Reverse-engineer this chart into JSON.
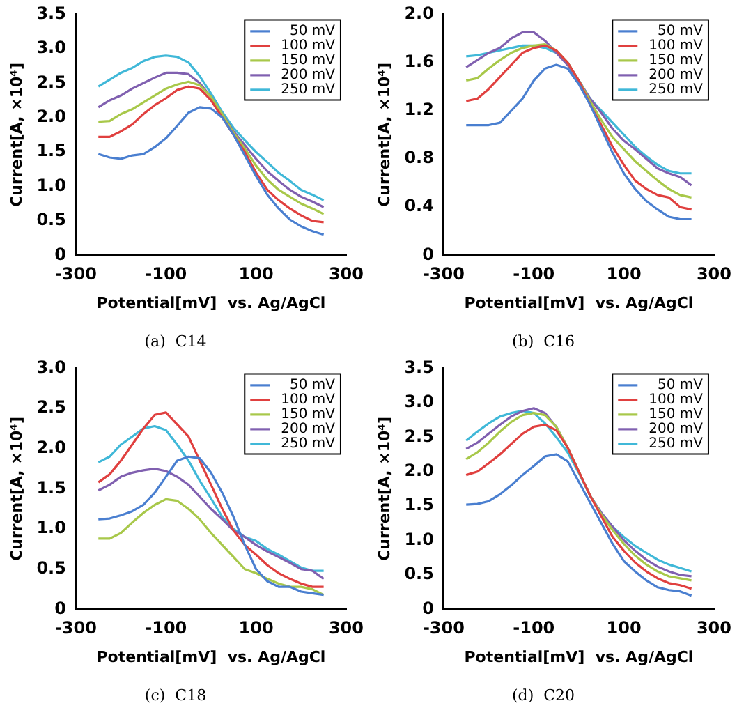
{
  "chart_data": [
    {
      "type": "line",
      "title": "(a)  C14",
      "xlabel": "Potential[mV]  vs. Ag/AgCl",
      "ylabel": "Current[A, ×10⁴]",
      "legend": "top right",
      "x": [
        -250,
        -225,
        -200,
        -175,
        -150,
        -125,
        -100,
        -75,
        -50,
        -25,
        0,
        25,
        50,
        75,
        100,
        125,
        150,
        175,
        200,
        225,
        250
      ],
      "xlim": [
        -300,
        300
      ],
      "xticks": [
        -300,
        -100,
        100,
        300
      ],
      "ylim": [
        0,
        3.5
      ],
      "yticks": [
        0,
        0.5,
        {
          "value": 1,
          "label": "1.0"
        },
        1.5,
        {
          "value": 2,
          "label": "2.0"
        },
        2.5,
        {
          "value": 3,
          "label": "3.0"
        },
        3.5
      ],
      "series": [
        {
          "name": "50 mV",
          "color": "#4a7fd0",
          "values": [
            1.47,
            1.42,
            1.4,
            1.45,
            1.47,
            1.57,
            1.7,
            1.88,
            2.07,
            2.15,
            2.13,
            2.0,
            1.75,
            1.45,
            1.15,
            0.88,
            0.68,
            0.52,
            0.42,
            0.35,
            0.3
          ]
        },
        {
          "name": "100 mV",
          "color": "#e0403f",
          "values": [
            1.72,
            1.72,
            1.8,
            1.9,
            2.05,
            2.18,
            2.28,
            2.4,
            2.45,
            2.42,
            2.25,
            2.0,
            1.75,
            1.5,
            1.2,
            0.95,
            0.8,
            0.68,
            0.58,
            0.5,
            0.48
          ]
        },
        {
          "name": "150 mV",
          "color": "#a8c84a",
          "values": [
            1.94,
            1.95,
            2.05,
            2.12,
            2.22,
            2.32,
            2.42,
            2.48,
            2.52,
            2.47,
            2.3,
            2.05,
            1.78,
            1.55,
            1.3,
            1.1,
            0.95,
            0.85,
            0.75,
            0.68,
            0.6
          ]
        },
        {
          "name": "200 mV",
          "color": "#8060b0",
          "values": [
            2.15,
            2.25,
            2.32,
            2.42,
            2.5,
            2.58,
            2.65,
            2.65,
            2.63,
            2.5,
            2.3,
            2.05,
            1.8,
            1.6,
            1.4,
            1.22,
            1.08,
            0.95,
            0.85,
            0.78,
            0.7
          ]
        },
        {
          "name": "250 mV",
          "color": "#40b8d8",
          "values": [
            2.45,
            2.55,
            2.65,
            2.72,
            2.82,
            2.88,
            2.9,
            2.88,
            2.8,
            2.6,
            2.35,
            2.08,
            1.85,
            1.67,
            1.5,
            1.35,
            1.2,
            1.08,
            0.95,
            0.88,
            0.8
          ]
        }
      ]
    },
    {
      "type": "line",
      "title": "(b)  C16",
      "xlabel": "Potential[mV]  vs. Ag/AgCl",
      "ylabel": "Current[A, ×10⁴]",
      "legend": "top right",
      "x": [
        -250,
        -225,
        -200,
        -175,
        -150,
        -125,
        -100,
        -75,
        -50,
        -25,
        0,
        25,
        50,
        75,
        100,
        125,
        150,
        175,
        200,
        225,
        250
      ],
      "xlim": [
        -300,
        300
      ],
      "xticks": [
        -300,
        -100,
        100,
        300
      ],
      "ylim": [
        0,
        2
      ],
      "yticks": [
        0,
        0.4,
        0.8,
        1.2,
        1.6,
        {
          "value": 2,
          "label": "2.0"
        }
      ],
      "series": [
        {
          "name": "50 mV",
          "color": "#4a7fd0",
          "values": [
            1.08,
            1.08,
            1.08,
            1.1,
            1.2,
            1.3,
            1.45,
            1.55,
            1.58,
            1.55,
            1.42,
            1.25,
            1.05,
            0.85,
            0.68,
            0.55,
            0.45,
            0.38,
            0.32,
            0.3,
            0.3
          ]
        },
        {
          "name": "100 mV",
          "color": "#e0403f",
          "values": [
            1.28,
            1.3,
            1.38,
            1.48,
            1.58,
            1.68,
            1.72,
            1.74,
            1.7,
            1.6,
            1.45,
            1.25,
            1.08,
            0.9,
            0.75,
            0.62,
            0.55,
            0.5,
            0.48,
            0.4,
            0.38
          ]
        },
        {
          "name": "150 mV",
          "color": "#a8c84a",
          "values": [
            1.45,
            1.47,
            1.55,
            1.62,
            1.68,
            1.72,
            1.74,
            1.75,
            1.7,
            1.6,
            1.45,
            1.28,
            1.12,
            0.98,
            0.88,
            0.78,
            0.7,
            0.62,
            0.55,
            0.5,
            0.48
          ]
        },
        {
          "name": "200 mV",
          "color": "#8060b0",
          "values": [
            1.56,
            1.62,
            1.68,
            1.72,
            1.8,
            1.85,
            1.85,
            1.78,
            1.68,
            1.58,
            1.45,
            1.3,
            1.18,
            1.05,
            0.95,
            0.88,
            0.8,
            0.72,
            0.68,
            0.65,
            0.58
          ]
        },
        {
          "name": "250 mV",
          "color": "#40b8d8",
          "values": [
            1.65,
            1.66,
            1.68,
            1.7,
            1.72,
            1.74,
            1.74,
            1.72,
            1.68,
            1.6,
            1.45,
            1.3,
            1.2,
            1.1,
            1.0,
            0.9,
            0.82,
            0.75,
            0.7,
            0.68,
            0.68
          ]
        }
      ]
    },
    {
      "type": "line",
      "title": "(c)  C18",
      "xlabel": "Potential[mV]  vs. Ag/AgCl",
      "ylabel": "Current[A, ×10⁴]",
      "legend": "top right",
      "x": [
        -250,
        -225,
        -200,
        -175,
        -150,
        -125,
        -100,
        -75,
        -50,
        -25,
        0,
        25,
        50,
        75,
        100,
        125,
        150,
        175,
        200,
        225,
        250
      ],
      "xlim": [
        -300,
        300
      ],
      "xticks": [
        -300,
        -100,
        100,
        300
      ],
      "ylim": [
        0,
        3
      ],
      "yticks": [
        0,
        0.5,
        {
          "value": 1,
          "label": "1.0"
        },
        1.5,
        {
          "value": 2,
          "label": "2.0"
        },
        2.5,
        {
          "value": 3,
          "label": "3.0"
        }
      ],
      "series": [
        {
          "name": "50 mV",
          "color": "#4a7fd0",
          "values": [
            1.12,
            1.13,
            1.17,
            1.22,
            1.3,
            1.45,
            1.65,
            1.85,
            1.9,
            1.88,
            1.7,
            1.45,
            1.15,
            0.8,
            0.5,
            0.35,
            0.28,
            0.28,
            0.22,
            0.2,
            0.18
          ]
        },
        {
          "name": "100 mV",
          "color": "#e0403f",
          "values": [
            1.58,
            1.68,
            1.85,
            2.05,
            2.25,
            2.42,
            2.45,
            2.3,
            2.15,
            1.85,
            1.55,
            1.25,
            0.98,
            0.8,
            0.68,
            0.55,
            0.45,
            0.38,
            0.32,
            0.28,
            0.28
          ]
        },
        {
          "name": "150 mV",
          "color": "#a8c84a",
          "values": [
            0.88,
            0.88,
            0.95,
            1.08,
            1.2,
            1.3,
            1.37,
            1.35,
            1.25,
            1.12,
            0.95,
            0.8,
            0.65,
            0.5,
            0.45,
            0.38,
            0.32,
            0.28,
            0.28,
            0.25,
            0.18
          ]
        },
        {
          "name": "200 mV",
          "color": "#8060b0",
          "values": [
            1.48,
            1.55,
            1.65,
            1.7,
            1.73,
            1.75,
            1.72,
            1.65,
            1.55,
            1.4,
            1.25,
            1.12,
            0.98,
            0.9,
            0.8,
            0.72,
            0.65,
            0.58,
            0.5,
            0.48,
            0.38
          ]
        },
        {
          "name": "250 mV",
          "color": "#40b8d8",
          "values": [
            1.83,
            1.9,
            2.05,
            2.15,
            2.25,
            2.28,
            2.23,
            2.05,
            1.85,
            1.6,
            1.38,
            1.15,
            1.0,
            0.9,
            0.85,
            0.75,
            0.68,
            0.6,
            0.52,
            0.48,
            0.48
          ]
        }
      ]
    },
    {
      "type": "line",
      "title": "(d)  C20",
      "xlabel": "Potential[mV]  vs. Ag/AgCl",
      "ylabel": "Current[A, ×10⁴]",
      "legend": "top right",
      "x": [
        -250,
        -225,
        -200,
        -175,
        -150,
        -125,
        -100,
        -75,
        -50,
        -25,
        0,
        25,
        50,
        75,
        100,
        125,
        150,
        175,
        200,
        225,
        250
      ],
      "xlim": [
        -300,
        300
      ],
      "xticks": [
        -300,
        -100,
        100,
        300
      ],
      "ylim": [
        0,
        3.5
      ],
      "yticks": [
        0,
        0.5,
        {
          "value": 1,
          "label": "1.0"
        },
        1.5,
        {
          "value": 2,
          "label": "2.0"
        },
        2.5,
        {
          "value": 3,
          "label": "3.0"
        },
        3.5
      ],
      "series": [
        {
          "name": "50 mV",
          "color": "#4a7fd0",
          "values": [
            1.52,
            1.53,
            1.57,
            1.67,
            1.8,
            1.95,
            2.08,
            2.22,
            2.25,
            2.15,
            1.85,
            1.55,
            1.25,
            0.95,
            0.7,
            0.55,
            0.42,
            0.32,
            0.28,
            0.26,
            0.2
          ]
        },
        {
          "name": "100 mV",
          "color": "#e0403f",
          "values": [
            1.95,
            2.0,
            2.12,
            2.25,
            2.4,
            2.55,
            2.65,
            2.68,
            2.6,
            2.35,
            2.0,
            1.65,
            1.35,
            1.05,
            0.85,
            0.68,
            0.55,
            0.45,
            0.38,
            0.35,
            0.3
          ]
        },
        {
          "name": "150 mV",
          "color": "#a8c84a",
          "values": [
            2.18,
            2.28,
            2.42,
            2.58,
            2.72,
            2.82,
            2.85,
            2.82,
            2.65,
            2.35,
            2.0,
            1.65,
            1.38,
            1.15,
            0.95,
            0.78,
            0.65,
            0.55,
            0.48,
            0.45,
            0.42
          ]
        },
        {
          "name": "200 mV",
          "color": "#8060b0",
          "values": [
            2.33,
            2.42,
            2.55,
            2.68,
            2.8,
            2.88,
            2.92,
            2.85,
            2.65,
            2.35,
            2.0,
            1.65,
            1.4,
            1.2,
            1.0,
            0.85,
            0.72,
            0.62,
            0.55,
            0.5,
            0.48
          ]
        },
        {
          "name": "250 mV",
          "color": "#40b8d8",
          "values": [
            2.45,
            2.58,
            2.7,
            2.8,
            2.85,
            2.88,
            2.85,
            2.7,
            2.5,
            2.28,
            1.98,
            1.65,
            1.4,
            1.2,
            1.05,
            0.92,
            0.82,
            0.72,
            0.65,
            0.6,
            0.55
          ]
        }
      ]
    }
  ]
}
